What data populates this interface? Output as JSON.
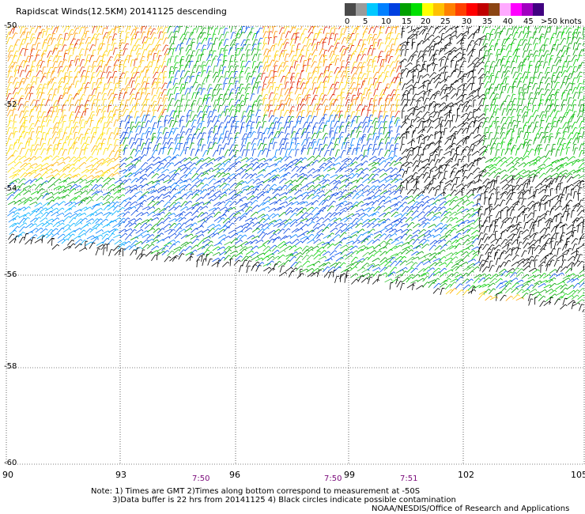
{
  "title": "Rapidscat Winds(12.5KM) 20141125 descending",
  "color_scale": {
    "labels": [
      "0",
      "5",
      "10",
      "15",
      "20",
      "25",
      "30",
      "35",
      "40",
      "45",
      ">50 knots"
    ],
    "colors": [
      "#4a4a4a",
      "#9a9a9a",
      "#00c8ff",
      "#0080ff",
      "#0040e0",
      "#00a000",
      "#00e000",
      "#ffff00",
      "#ffc000",
      "#ff8000",
      "#ff4000",
      "#ff0000",
      "#c00000",
      "#8b4513",
      "#ffaaff",
      "#ff00ff",
      "#a000c0",
      "#400080"
    ]
  },
  "map": {
    "latitude_labels": [
      "-50",
      "-52",
      "-54",
      "-56",
      "-58",
      "-60"
    ],
    "longitude_labels": [
      "90",
      "93",
      "96",
      "99",
      "102",
      "105"
    ],
    "longitude_range": [
      90,
      105
    ],
    "latitude_range": [
      -60,
      -50
    ],
    "grid": "dotted",
    "time_labels": [
      {
        "text": "7:50",
        "lon": 95.0
      },
      {
        "text": "7:50",
        "lon": 98.5
      },
      {
        "text": "7:51",
        "lon": 100.5
      }
    ]
  },
  "notes": {
    "line1": "Note: 1) Times are GMT 2)Times along bottom correspond to measurement at -50S",
    "line2": "3)Data buffer is 22 hrs from 20141125 4) Black circles indicate possible contamination"
  },
  "credit": "NOAA/NESDIS/Office of Research and Applications"
}
